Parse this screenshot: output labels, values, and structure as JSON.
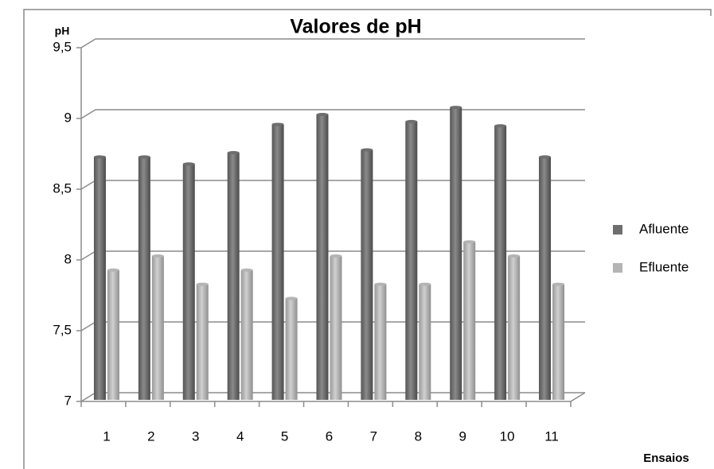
{
  "chart_data": {
    "type": "bar",
    "title": "Valores de pH",
    "y_label": "pH",
    "x_label": "Ensaios",
    "categories": [
      "1",
      "2",
      "3",
      "4",
      "5",
      "6",
      "7",
      "8",
      "9",
      "10",
      "11"
    ],
    "series": [
      {
        "name": "Afluente",
        "color": "#6e6e6e",
        "values": [
          8.7,
          8.7,
          8.65,
          8.73,
          8.93,
          9.0,
          8.75,
          8.95,
          9.05,
          8.92,
          8.7
        ]
      },
      {
        "name": "Efluente",
        "color": "#b4b4b4",
        "values": [
          7.9,
          8.0,
          7.8,
          7.9,
          7.7,
          8.0,
          7.8,
          7.8,
          8.1,
          8.0,
          7.8
        ]
      }
    ],
    "ylim": [
      7,
      9.5
    ],
    "yticks": [
      7,
      {
        "value": 7.5,
        "label": "7,5"
      },
      8,
      {
        "value": 8.5,
        "label": "8,5"
      },
      9,
      {
        "value": 9.5,
        "label": "9,5"
      }
    ],
    "grid": true,
    "legend": "right"
  }
}
